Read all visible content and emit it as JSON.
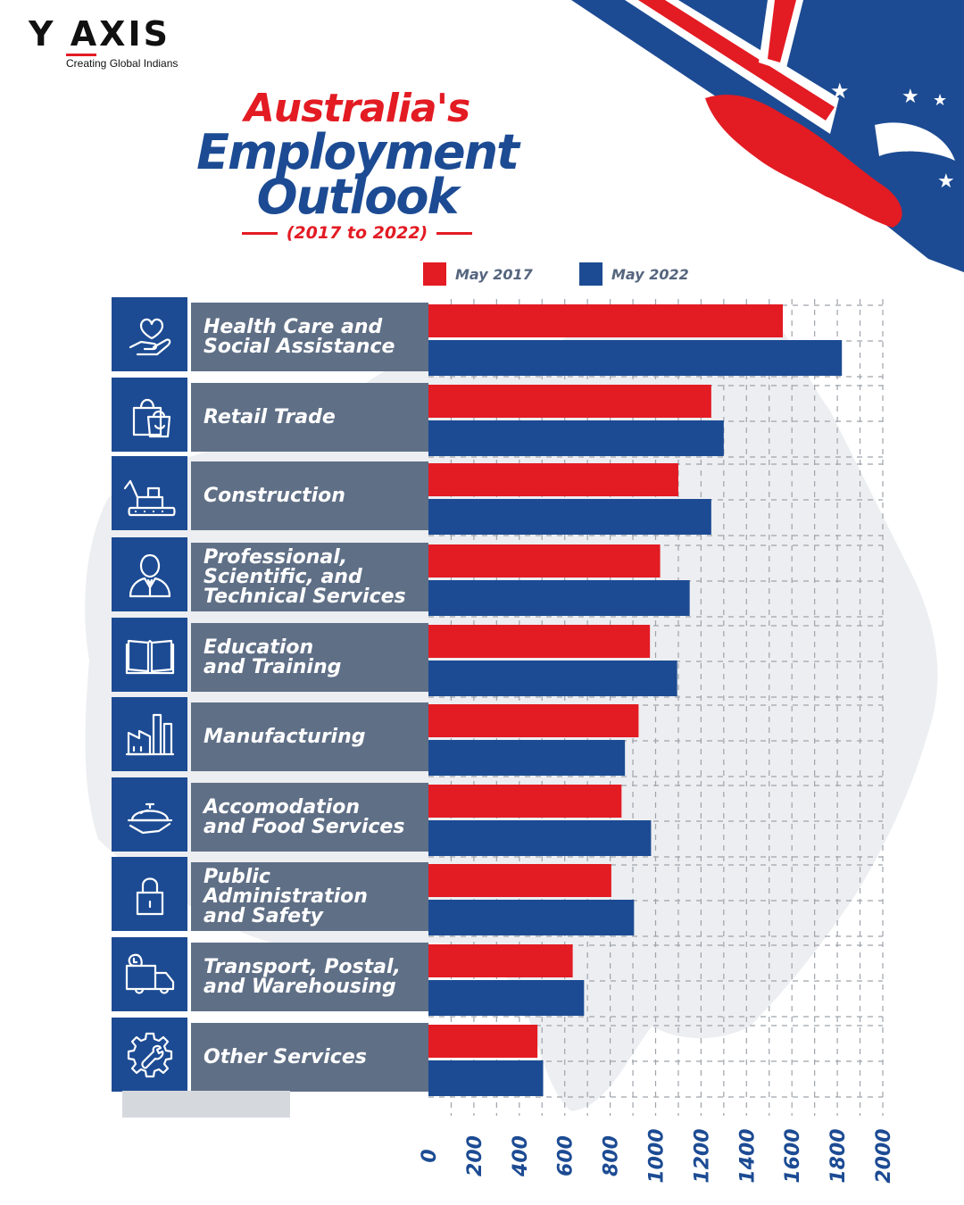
{
  "brand": {
    "name": "Y AXIS",
    "tagline": "Creating Global Indians"
  },
  "title": {
    "line1": "Australia's",
    "line2": "Employment",
    "line3": "Outlook",
    "period": "(2017 to 2022)"
  },
  "colors": {
    "series_2017": "#e31b23",
    "series_2022": "#1c4b93",
    "label_bg": "#5f6f86",
    "icon_bg": "#1c4b93"
  },
  "icons": [
    "heart-hand-icon",
    "shopping-bags-icon",
    "excavator-icon",
    "professional-person-icon",
    "open-book-icon",
    "factory-icon",
    "food-cloche-icon",
    "padlock-icon",
    "delivery-truck-icon",
    "gear-wrench-icon"
  ],
  "chart_data": {
    "type": "bar",
    "orientation": "horizontal",
    "title": "Australia's Employment Outlook (2017 to 2022)",
    "categories": [
      "Health Care and\nSocial Assistance",
      "Retail Trade",
      "Construction",
      "Professional,\nScientific, and\nTechnical Services",
      "Education\nand Training",
      "Manufacturing",
      "Accomodation\nand Food Services",
      "Public\nAdministration\nand Safety",
      "Transport, Postal,\nand Warehousing",
      "Other Services"
    ],
    "series": [
      {
        "name": "May 2017",
        "values": [
          1560,
          1245,
          1100,
          1020,
          975,
          925,
          850,
          805,
          635,
          480
        ]
      },
      {
        "name": "May 2022",
        "values": [
          1820,
          1300,
          1245,
          1150,
          1095,
          865,
          980,
          905,
          685,
          505
        ]
      }
    ],
    "xlim": [
      0,
      2000
    ],
    "xticks": [
      "0",
      "200",
      "400",
      "600",
      "800",
      "1000",
      "1200",
      "1400",
      "1600",
      "1800",
      "2000"
    ],
    "xlabel": "",
    "ylabel": "",
    "grid": true,
    "legend_position": "top"
  }
}
